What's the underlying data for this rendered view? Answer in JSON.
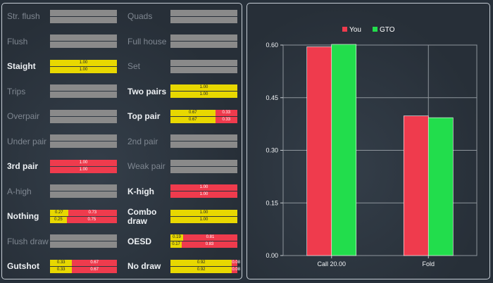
{
  "left_panel": {
    "hands": [
      {
        "label": "Str. flush",
        "active": false,
        "bars": []
      },
      {
        "label": "Quads",
        "active": false,
        "bars": []
      },
      {
        "label": "Flush",
        "active": false,
        "bars": []
      },
      {
        "label": "Full house",
        "active": false,
        "bars": []
      },
      {
        "label": "Staight",
        "active": true,
        "bars": [
          [
            {
              "c": "y",
              "v": 1.0,
              "t": "1.00"
            }
          ],
          [
            {
              "c": "y",
              "v": 1.0,
              "t": "1.00"
            }
          ]
        ]
      },
      {
        "label": "Set",
        "active": false,
        "bars": []
      },
      {
        "label": "Trips",
        "active": false,
        "bars": []
      },
      {
        "label": "Two pairs",
        "active": true,
        "bars": [
          [
            {
              "c": "y",
              "v": 1.0,
              "t": "1.00"
            }
          ],
          [
            {
              "c": "y",
              "v": 1.0,
              "t": "1.00"
            }
          ]
        ]
      },
      {
        "label": "Overpair",
        "active": false,
        "bars": []
      },
      {
        "label": "Top pair",
        "active": true,
        "bars": [
          [
            {
              "c": "y",
              "v": 0.67,
              "t": "0.67"
            },
            {
              "c": "r",
              "v": 0.33,
              "t": "0.33"
            }
          ],
          [
            {
              "c": "y",
              "v": 0.67,
              "t": "0.67"
            },
            {
              "c": "r",
              "v": 0.33,
              "t": "0.33"
            }
          ]
        ]
      },
      {
        "label": "Under pair",
        "active": false,
        "bars": []
      },
      {
        "label": "2nd pair",
        "active": false,
        "bars": []
      },
      {
        "label": "3rd pair",
        "active": true,
        "bars": [
          [
            {
              "c": "r",
              "v": 1.0,
              "t": "1.00"
            }
          ],
          [
            {
              "c": "r",
              "v": 1.0,
              "t": "1.00"
            }
          ]
        ]
      },
      {
        "label": "Weak pair",
        "active": false,
        "bars": []
      },
      {
        "label": "A-high",
        "active": false,
        "bars": []
      },
      {
        "label": "K-high",
        "active": true,
        "bars": [
          [
            {
              "c": "r",
              "v": 1.0,
              "t": "1.00"
            }
          ],
          [
            {
              "c": "r",
              "v": 1.0,
              "t": "1.00"
            }
          ]
        ]
      },
      {
        "label": "Nothing",
        "active": true,
        "bars": [
          [
            {
              "c": "y",
              "v": 0.27,
              "t": "0.27"
            },
            {
              "c": "r",
              "v": 0.73,
              "t": "0.73"
            }
          ],
          [
            {
              "c": "y",
              "v": 0.25,
              "t": "0.25"
            },
            {
              "c": "r",
              "v": 0.75,
              "t": "0.75"
            }
          ]
        ]
      },
      {
        "label": "Combo draw",
        "active": true,
        "bars": [
          [
            {
              "c": "y",
              "v": 1.0,
              "t": "1.00"
            }
          ],
          [
            {
              "c": "y",
              "v": 1.0,
              "t": "1.00"
            }
          ]
        ]
      },
      {
        "label": "Flush draw",
        "active": false,
        "bars": []
      },
      {
        "label": "OESD",
        "active": true,
        "bars": [
          [
            {
              "c": "y",
              "v": 0.19,
              "t": "0.19"
            },
            {
              "c": "r",
              "v": 0.81,
              "t": "0.81"
            }
          ],
          [
            {
              "c": "y",
              "v": 0.17,
              "t": "0.17"
            },
            {
              "c": "r",
              "v": 0.83,
              "t": "0.83"
            }
          ]
        ]
      },
      {
        "label": "Gutshot",
        "active": true,
        "bars": [
          [
            {
              "c": "y",
              "v": 0.33,
              "t": "0.33"
            },
            {
              "c": "r",
              "v": 0.67,
              "t": "0.67"
            }
          ],
          [
            {
              "c": "y",
              "v": 0.33,
              "t": "0.33"
            },
            {
              "c": "r",
              "v": 0.67,
              "t": "0.67"
            }
          ]
        ]
      },
      {
        "label": "No draw",
        "active": true,
        "bars": [
          [
            {
              "c": "y",
              "v": 0.92,
              "t": "0.92"
            },
            {
              "c": "r",
              "v": 0.08,
              "t": "0.08"
            }
          ],
          [
            {
              "c": "y",
              "v": 0.92,
              "t": "0.92"
            },
            {
              "c": "r",
              "v": 0.08,
              "t": "0.08"
            }
          ]
        ]
      }
    ]
  },
  "colors": {
    "yellow": "#e8d800",
    "red": "#ef3b4d",
    "green": "#22dd4c",
    "gray": "#8a8a8a"
  },
  "chart_data": {
    "type": "bar",
    "categories": [
      "Call 20.00",
      "Fold"
    ],
    "series": [
      {
        "name": "You",
        "color": "#ef3b4d",
        "values": [
          0.595,
          0.398
        ]
      },
      {
        "name": "GTO",
        "color": "#22dd4c",
        "values": [
          0.602,
          0.393
        ]
      }
    ],
    "ylim": [
      0,
      0.6
    ],
    "yticks": [
      "0.00",
      "0.15",
      "0.30",
      "0.45",
      "0.60"
    ],
    "grid": true,
    "legend": "top-center"
  }
}
